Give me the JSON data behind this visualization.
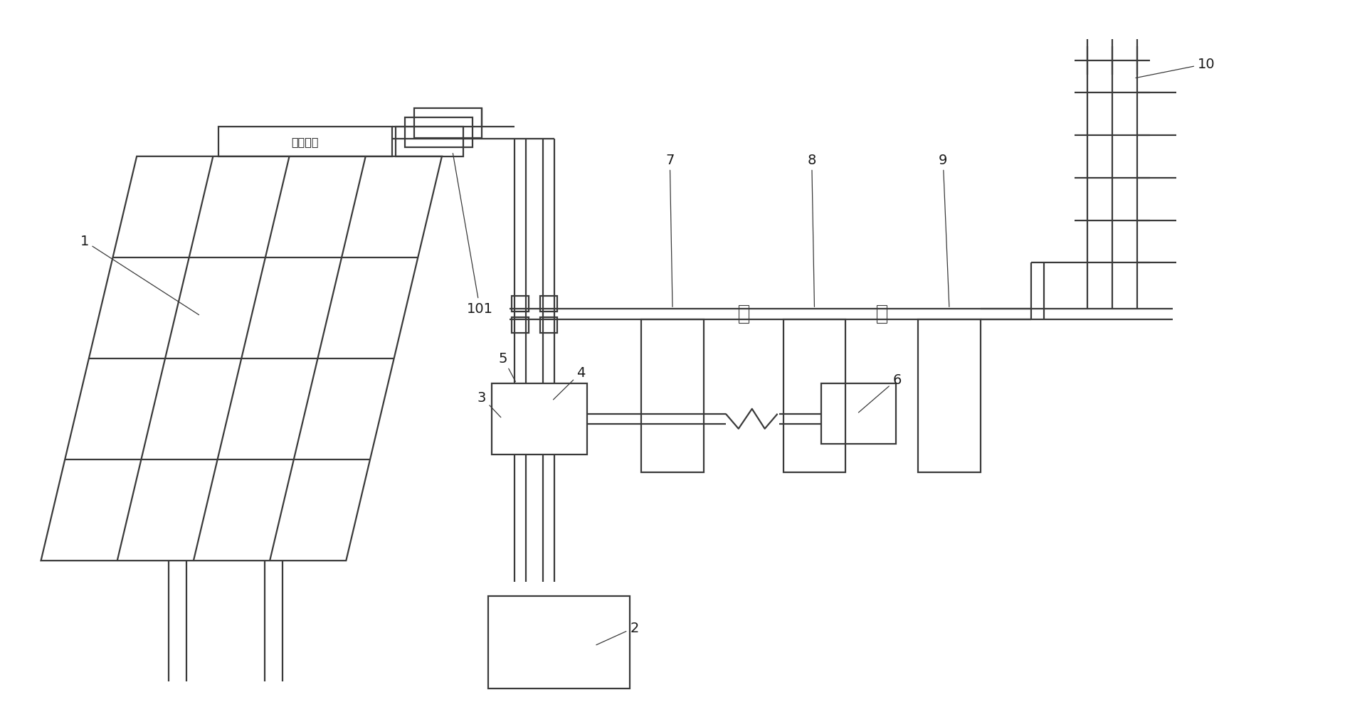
{
  "background_color": "#ffffff",
  "line_color": "#3a3a3a",
  "line_width": 1.6,
  "fig_width": 19.28,
  "fig_height": 9.95
}
